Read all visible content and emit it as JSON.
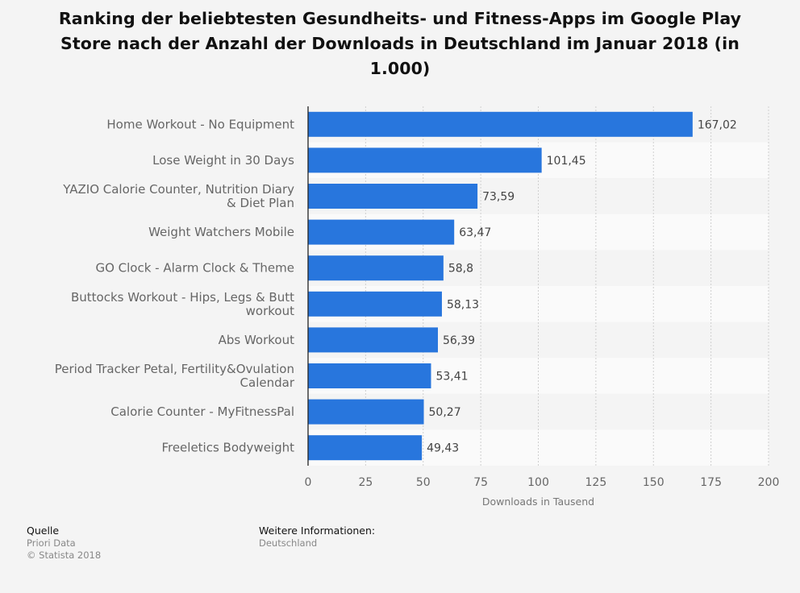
{
  "chart_data": {
    "type": "bar",
    "orientation": "horizontal",
    "title": "Ranking der beliebtesten Gesundheits- und Fitness-Apps im Google Play Store nach der Anzahl der Downloads in Deutschland im Januar 2018 (in 1.000)",
    "categories": [
      [
        "Home Workout - No Equipment"
      ],
      [
        "Lose Weight in 30 Days"
      ],
      [
        "YAZIO Calorie Counter, Nutrition Diary",
        "& Diet Plan"
      ],
      [
        "Weight Watchers Mobile"
      ],
      [
        "GO Clock - Alarm Clock & Theme"
      ],
      [
        "Buttocks Workout - Hips, Legs & Butt",
        "workout"
      ],
      [
        "Abs Workout"
      ],
      [
        "Period Tracker Petal, Fertility&Ovulation",
        "Calendar"
      ],
      [
        "Calorie Counter - MyFitnessPal"
      ],
      [
        "Freeletics Bodyweight"
      ]
    ],
    "values": [
      167.02,
      101.45,
      73.59,
      63.47,
      58.8,
      58.13,
      56.39,
      53.41,
      50.27,
      49.43
    ],
    "value_labels": [
      "167,02",
      "101,45",
      "73,59",
      "63,47",
      "58,8",
      "58,13",
      "56,39",
      "53,41",
      "50,27",
      "49,43"
    ],
    "xlabel": "Downloads in Tausend",
    "ylabel": "",
    "xlim": [
      0,
      200
    ],
    "xticks": [
      0,
      25,
      50,
      75,
      100,
      125,
      150,
      175,
      200
    ],
    "grid": true,
    "legend": "none",
    "bar_color": "#2876dd"
  },
  "footer": {
    "source_heading": "Quelle",
    "source_lines": [
      "Priori Data",
      "© Statista 2018"
    ],
    "info_heading": "Weitere Informationen:",
    "info_lines": [
      "Deutschland"
    ]
  }
}
